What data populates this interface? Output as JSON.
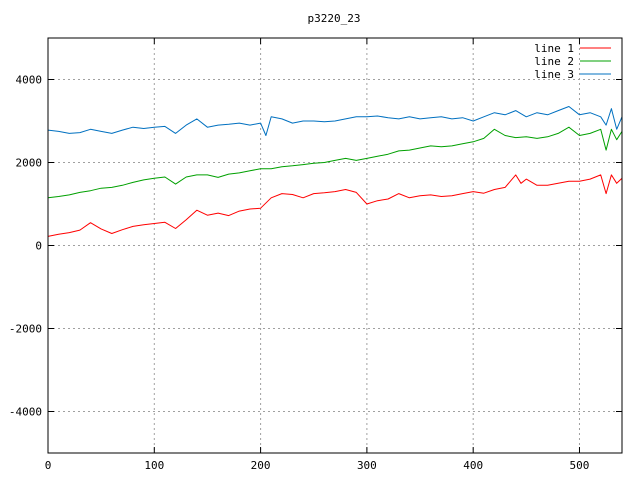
{
  "chart_data": {
    "type": "line",
    "title": "p3220_23",
    "xlabel": "",
    "ylabel": "",
    "xlim": [
      0,
      540
    ],
    "ylim": [
      -5000,
      5000
    ],
    "x_ticks": [
      0,
      100,
      200,
      300,
      400,
      500
    ],
    "y_ticks": [
      -4000,
      -2000,
      0,
      2000,
      4000
    ],
    "grid": true,
    "legend_position": "top-right",
    "series": [
      {
        "name": "line 1",
        "color": "#ff0000",
        "x": [
          0,
          10,
          20,
          30,
          40,
          50,
          60,
          70,
          80,
          90,
          100,
          110,
          120,
          130,
          140,
          150,
          160,
          170,
          180,
          190,
          200,
          210,
          220,
          230,
          240,
          250,
          260,
          270,
          280,
          290,
          300,
          310,
          320,
          330,
          340,
          350,
          360,
          370,
          380,
          390,
          400,
          410,
          420,
          430,
          440,
          445,
          450,
          460,
          470,
          480,
          490,
          500,
          510,
          520,
          525,
          530,
          535,
          540
        ],
        "y": [
          220,
          270,
          310,
          370,
          550,
          400,
          290,
          380,
          460,
          500,
          530,
          560,
          410,
          620,
          850,
          730,
          780,
          720,
          830,
          880,
          900,
          1150,
          1250,
          1230,
          1150,
          1250,
          1270,
          1300,
          1350,
          1280,
          1000,
          1080,
          1120,
          1250,
          1150,
          1200,
          1220,
          1180,
          1200,
          1250,
          1300,
          1260,
          1350,
          1400,
          1700,
          1500,
          1600,
          1450,
          1450,
          1500,
          1550,
          1550,
          1600,
          1700,
          1250,
          1700,
          1500,
          1620
        ]
      },
      {
        "name": "line 2",
        "color": "#00a000",
        "x": [
          0,
          10,
          20,
          30,
          40,
          50,
          60,
          70,
          80,
          90,
          100,
          110,
          120,
          130,
          140,
          150,
          160,
          170,
          180,
          190,
          200,
          210,
          220,
          230,
          240,
          250,
          260,
          270,
          280,
          290,
          300,
          310,
          320,
          330,
          340,
          350,
          360,
          370,
          380,
          390,
          400,
          410,
          420,
          430,
          440,
          450,
          460,
          470,
          480,
          490,
          500,
          510,
          520,
          525,
          530,
          535,
          540
        ],
        "y": [
          1150,
          1180,
          1220,
          1280,
          1320,
          1380,
          1400,
          1450,
          1520,
          1580,
          1620,
          1650,
          1480,
          1650,
          1700,
          1700,
          1640,
          1720,
          1750,
          1800,
          1850,
          1850,
          1900,
          1920,
          1950,
          1980,
          2000,
          2050,
          2100,
          2050,
          2100,
          2150,
          2200,
          2280,
          2300,
          2350,
          2400,
          2380,
          2400,
          2450,
          2500,
          2580,
          2800,
          2650,
          2600,
          2620,
          2580,
          2620,
          2700,
          2850,
          2650,
          2700,
          2800,
          2300,
          2800,
          2550,
          2750
        ]
      },
      {
        "name": "line 3",
        "color": "#0070c0",
        "x": [
          0,
          10,
          20,
          30,
          40,
          50,
          60,
          70,
          80,
          90,
          100,
          110,
          120,
          130,
          140,
          150,
          160,
          170,
          180,
          190,
          200,
          205,
          210,
          220,
          230,
          240,
          250,
          260,
          270,
          280,
          290,
          300,
          310,
          320,
          330,
          340,
          350,
          360,
          370,
          380,
          390,
          400,
          410,
          420,
          430,
          440,
          450,
          460,
          470,
          480,
          490,
          500,
          510,
          520,
          525,
          530,
          535,
          540
        ],
        "y": [
          2780,
          2750,
          2700,
          2720,
          2800,
          2750,
          2700,
          2780,
          2850,
          2820,
          2850,
          2870,
          2700,
          2900,
          3050,
          2850,
          2900,
          2920,
          2950,
          2900,
          2950,
          2650,
          3100,
          3050,
          2950,
          3000,
          3000,
          2980,
          3000,
          3050,
          3100,
          3100,
          3120,
          3080,
          3050,
          3100,
          3050,
          3080,
          3100,
          3050,
          3080,
          3000,
          3100,
          3200,
          3150,
          3250,
          3100,
          3200,
          3150,
          3250,
          3350,
          3150,
          3200,
          3100,
          2900,
          3300,
          2800,
          3100
        ]
      }
    ]
  }
}
